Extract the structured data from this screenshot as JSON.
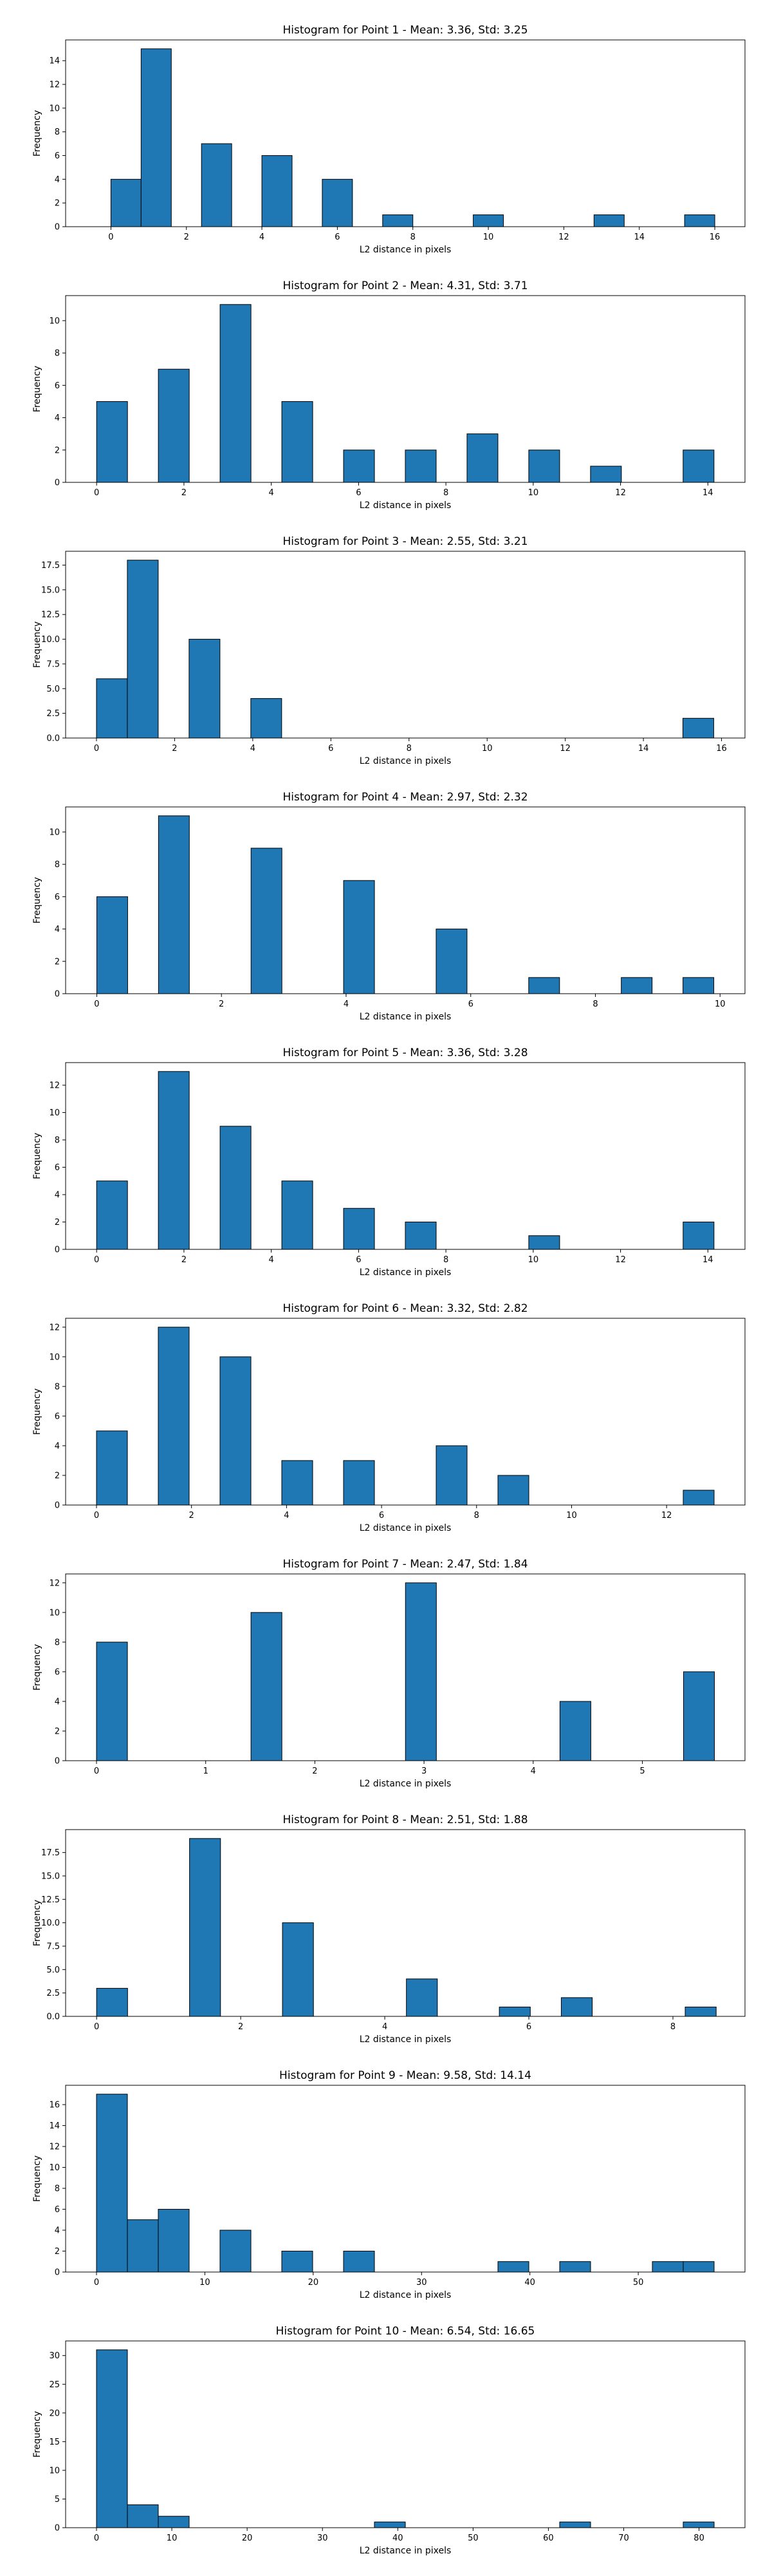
{
  "chart_data": [
    {
      "type": "bar",
      "title": "Histogram for Point 1 - Mean: 3.36, Std: 3.25",
      "xlabel": "L2 distance in pixels",
      "ylabel": "Frequency",
      "xlim": [
        -1.2,
        16.8
      ],
      "ylim": [
        0,
        15.75
      ],
      "xticks": [
        0,
        2,
        4,
        6,
        8,
        10,
        12,
        14,
        16
      ],
      "xtick_labels": [
        "0",
        "2",
        "4",
        "6",
        "8",
        "10",
        "12",
        "14",
        "16"
      ],
      "yticks": [
        0,
        2,
        4,
        6,
        8,
        10,
        12,
        14
      ],
      "ytick_labels": [
        "0",
        "2",
        "4",
        "6",
        "8",
        "10",
        "12",
        "14"
      ],
      "grid": false,
      "bin_edges": [
        0,
        0.8,
        1.6,
        2.4,
        3.2,
        4.0,
        4.8,
        5.6,
        6.4,
        7.2,
        8.0,
        8.8,
        9.6,
        10.4,
        11.2,
        12.0,
        12.8,
        13.6,
        14.4,
        15.2,
        16.0
      ],
      "values": [
        4,
        15,
        0,
        7,
        0,
        6,
        0,
        4,
        0,
        1,
        0,
        0,
        1,
        0,
        0,
        0,
        1,
        0,
        0,
        1
      ]
    },
    {
      "type": "bar",
      "title": "Histogram for Point 2 - Mean: 4.31, Std: 3.71",
      "xlabel": "L2 distance in pixels",
      "ylabel": "Frequency",
      "xlim": [
        -0.71,
        14.85
      ],
      "ylim": [
        0,
        11.55
      ],
      "xticks": [
        0,
        2,
        4,
        6,
        8,
        10,
        12,
        14
      ],
      "xtick_labels": [
        "0",
        "2",
        "4",
        "6",
        "8",
        "10",
        "12",
        "14"
      ],
      "yticks": [
        0,
        2,
        4,
        6,
        8,
        10
      ],
      "ytick_labels": [
        "0",
        "2",
        "4",
        "6",
        "8",
        "10"
      ],
      "grid": false,
      "bin_edges": [
        0,
        0.707,
        1.414,
        2.121,
        2.828,
        3.535,
        4.242,
        4.949,
        5.656,
        6.363,
        7.07,
        7.777,
        8.484,
        9.191,
        9.898,
        10.605,
        11.312,
        12.019,
        12.726,
        13.433,
        14.14
      ],
      "values": [
        5,
        0,
        7,
        0,
        11,
        0,
        5,
        0,
        2,
        0,
        2,
        0,
        3,
        0,
        2,
        0,
        1,
        0,
        0,
        2
      ]
    },
    {
      "type": "bar",
      "title": "Histogram for Point 3 - Mean: 2.55, Std: 3.21",
      "xlabel": "L2 distance in pixels",
      "ylabel": "Frequency",
      "xlim": [
        -0.79,
        16.6
      ],
      "ylim": [
        0,
        18.9
      ],
      "xticks": [
        0,
        2,
        4,
        6,
        8,
        10,
        12,
        14,
        16
      ],
      "xtick_labels": [
        "0",
        "2",
        "4",
        "6",
        "8",
        "10",
        "12",
        "14",
        "16"
      ],
      "yticks": [
        0,
        2.5,
        5,
        7.5,
        10,
        12.5,
        15,
        17.5
      ],
      "ytick_labels": [
        "0.0",
        "2.5",
        "5.0",
        "7.5",
        "10.0",
        "12.5",
        "15.0",
        "17.5"
      ],
      "grid": false,
      "bin_edges": [
        0,
        0.79,
        1.58,
        2.37,
        3.16,
        3.95,
        4.74,
        5.53,
        6.32,
        7.11,
        7.9,
        8.69,
        9.48,
        10.27,
        11.06,
        11.85,
        12.64,
        13.43,
        14.22,
        15.01,
        15.8
      ],
      "values": [
        6,
        18,
        0,
        10,
        0,
        4,
        0,
        0,
        0,
        0,
        0,
        0,
        0,
        0,
        0,
        0,
        0,
        0,
        0,
        2
      ]
    },
    {
      "type": "bar",
      "title": "Histogram for Point 4 - Mean: 2.97, Std: 2.32",
      "xlabel": "L2 distance in pixels",
      "ylabel": "Frequency",
      "xlim": [
        -0.5,
        10.4
      ],
      "ylim": [
        0,
        11.55
      ],
      "xticks": [
        0,
        2,
        4,
        6,
        8,
        10
      ],
      "xtick_labels": [
        "0",
        "2",
        "4",
        "6",
        "8",
        "10"
      ],
      "yticks": [
        0,
        2,
        4,
        6,
        8,
        10
      ],
      "ytick_labels": [
        "0",
        "2",
        "4",
        "6",
        "8",
        "10"
      ],
      "grid": false,
      "bin_edges": [
        0,
        0.495,
        0.99,
        1.485,
        1.98,
        2.475,
        2.97,
        3.465,
        3.96,
        4.455,
        4.95,
        5.445,
        5.94,
        6.435,
        6.93,
        7.425,
        7.92,
        8.415,
        8.91,
        9.405,
        9.9
      ],
      "values": [
        6,
        0,
        11,
        0,
        0,
        9,
        0,
        0,
        7,
        0,
        0,
        4,
        0,
        0,
        1,
        0,
        0,
        1,
        0,
        1
      ]
    },
    {
      "type": "bar",
      "title": "Histogram for Point 5 - Mean: 3.36, Std: 3.28",
      "xlabel": "L2 distance in pixels",
      "ylabel": "Frequency",
      "xlim": [
        -0.71,
        14.85
      ],
      "ylim": [
        0,
        13.65
      ],
      "xticks": [
        0,
        2,
        4,
        6,
        8,
        10,
        12,
        14
      ],
      "xtick_labels": [
        "0",
        "2",
        "4",
        "6",
        "8",
        "10",
        "12",
        "14"
      ],
      "yticks": [
        0,
        2,
        4,
        6,
        8,
        10,
        12
      ],
      "ytick_labels": [
        "0",
        "2",
        "4",
        "6",
        "8",
        "10",
        "12"
      ],
      "grid": false,
      "bin_edges": [
        0,
        0.707,
        1.414,
        2.121,
        2.828,
        3.535,
        4.242,
        4.949,
        5.656,
        6.363,
        7.07,
        7.777,
        8.484,
        9.191,
        9.898,
        10.605,
        11.312,
        12.019,
        12.726,
        13.433,
        14.14
      ],
      "values": [
        5,
        0,
        13,
        0,
        9,
        0,
        5,
        0,
        3,
        0,
        2,
        0,
        0,
        0,
        1,
        0,
        0,
        0,
        0,
        2
      ]
    },
    {
      "type": "bar",
      "title": "Histogram for Point 6 - Mean: 3.32, Std: 2.82",
      "xlabel": "L2 distance in pixels",
      "ylabel": "Frequency",
      "xlim": [
        -0.65,
        13.65
      ],
      "ylim": [
        0,
        12.6
      ],
      "xticks": [
        0,
        2,
        4,
        6,
        8,
        10,
        12
      ],
      "xtick_labels": [
        "0",
        "2",
        "4",
        "6",
        "8",
        "10",
        "12"
      ],
      "yticks": [
        0,
        2,
        4,
        6,
        8,
        10,
        12
      ],
      "ytick_labels": [
        "0",
        "2",
        "4",
        "6",
        "8",
        "10",
        "12"
      ],
      "grid": false,
      "bin_edges": [
        0,
        0.65,
        1.3,
        1.95,
        2.6,
        3.25,
        3.9,
        4.55,
        5.2,
        5.85,
        6.5,
        7.15,
        7.8,
        8.45,
        9.1,
        9.75,
        10.4,
        11.05,
        11.7,
        12.35,
        13.0
      ],
      "values": [
        5,
        0,
        12,
        0,
        10,
        0,
        3,
        0,
        3,
        0,
        0,
        4,
        0,
        2,
        0,
        0,
        0,
        0,
        0,
        1
      ]
    },
    {
      "type": "bar",
      "title": "Histogram for Point 7 - Mean: 2.47, Std: 1.84",
      "xlabel": "L2 distance in pixels",
      "ylabel": "Frequency",
      "xlim": [
        -0.283,
        5.94
      ],
      "ylim": [
        0,
        12.6
      ],
      "xticks": [
        0,
        1,
        2,
        3,
        4,
        5
      ],
      "xtick_labels": [
        "0",
        "1",
        "2",
        "3",
        "4",
        "5"
      ],
      "yticks": [
        0,
        2,
        4,
        6,
        8,
        10,
        12
      ],
      "ytick_labels": [
        "0",
        "2",
        "4",
        "6",
        "8",
        "10",
        "12"
      ],
      "grid": false,
      "bin_edges": [
        0,
        0.283,
        0.566,
        0.849,
        1.132,
        1.415,
        1.698,
        1.981,
        2.264,
        2.547,
        2.83,
        3.113,
        3.396,
        3.679,
        3.962,
        4.245,
        4.528,
        4.811,
        5.094,
        5.377,
        5.66
      ],
      "values": [
        8,
        0,
        0,
        0,
        0,
        10,
        0,
        0,
        0,
        0,
        12,
        0,
        0,
        0,
        0,
        4,
        0,
        0,
        0,
        6
      ]
    },
    {
      "type": "bar",
      "title": "Histogram for Point 8 - Mean: 2.51, Std: 1.88",
      "xlabel": "L2 distance in pixels",
      "ylabel": "Frequency",
      "xlim": [
        -0.43,
        9.0
      ],
      "ylim": [
        0,
        19.95
      ],
      "xticks": [
        0,
        2,
        4,
        6,
        8
      ],
      "xtick_labels": [
        "0",
        "2",
        "4",
        "6",
        "8"
      ],
      "yticks": [
        0,
        2.5,
        5,
        7.5,
        10,
        12.5,
        15,
        17.5
      ],
      "ytick_labels": [
        "0.0",
        "2.5",
        "5.0",
        "7.5",
        "10.0",
        "12.5",
        "15.0",
        "17.5"
      ],
      "grid": false,
      "bin_edges": [
        0,
        0.43,
        0.86,
        1.29,
        1.72,
        2.15,
        2.58,
        3.01,
        3.44,
        3.87,
        4.3,
        4.73,
        5.16,
        5.59,
        6.02,
        6.45,
        6.88,
        7.31,
        7.74,
        8.17,
        8.6
      ],
      "values": [
        3,
        0,
        0,
        19,
        0,
        0,
        10,
        0,
        0,
        0,
        4,
        0,
        0,
        1,
        0,
        2,
        0,
        0,
        0,
        1
      ]
    },
    {
      "type": "bar",
      "title": "Histogram for Point 9 - Mean: 9.58, Std: 14.14",
      "xlabel": "L2 distance in pixels",
      "ylabel": "Frequency",
      "xlim": [
        -2.85,
        59.85
      ],
      "ylim": [
        0,
        17.85
      ],
      "xticks": [
        0,
        10,
        20,
        30,
        40,
        50
      ],
      "xtick_labels": [
        "0",
        "10",
        "20",
        "30",
        "40",
        "50"
      ],
      "yticks": [
        0,
        2,
        4,
        6,
        8,
        10,
        12,
        14,
        16
      ],
      "ytick_labels": [
        "0",
        "2",
        "4",
        "6",
        "8",
        "10",
        "12",
        "14",
        "16"
      ],
      "grid": false,
      "bin_edges": [
        0,
        2.85,
        5.7,
        8.55,
        11.4,
        14.25,
        17.1,
        19.95,
        22.8,
        25.65,
        28.5,
        31.35,
        34.2,
        37.05,
        39.9,
        42.75,
        45.6,
        48.45,
        51.3,
        54.15,
        57.0
      ],
      "values": [
        17,
        5,
        6,
        0,
        4,
        0,
        2,
        0,
        2,
        0,
        0,
        0,
        0,
        1,
        0,
        1,
        0,
        0,
        1,
        1
      ]
    },
    {
      "type": "bar",
      "title": "Histogram for Point 10 - Mean: 6.54, Std: 16.65",
      "xlabel": "L2 distance in pixels",
      "ylabel": "Frequency",
      "xlim": [
        -4.1,
        86.1
      ],
      "ylim": [
        0,
        32.55
      ],
      "xticks": [
        0,
        10,
        20,
        30,
        40,
        50,
        60,
        70,
        80
      ],
      "xtick_labels": [
        "0",
        "10",
        "20",
        "30",
        "40",
        "50",
        "60",
        "70",
        "80"
      ],
      "yticks": [
        0,
        5,
        10,
        15,
        20,
        25,
        30
      ],
      "ytick_labels": [
        "0",
        "5",
        "10",
        "15",
        "20",
        "25",
        "30"
      ],
      "grid": false,
      "bin_edges": [
        0,
        4.1,
        8.2,
        12.3,
        16.4,
        20.5,
        24.6,
        28.7,
        32.8,
        36.9,
        41.0,
        45.1,
        49.2,
        53.3,
        57.4,
        61.5,
        65.6,
        69.7,
        73.8,
        77.9,
        82.0
      ],
      "values": [
        31,
        4,
        2,
        0,
        0,
        0,
        0,
        0,
        0,
        1,
        0,
        0,
        0,
        0,
        0,
        1,
        0,
        0,
        0,
        1
      ]
    }
  ]
}
